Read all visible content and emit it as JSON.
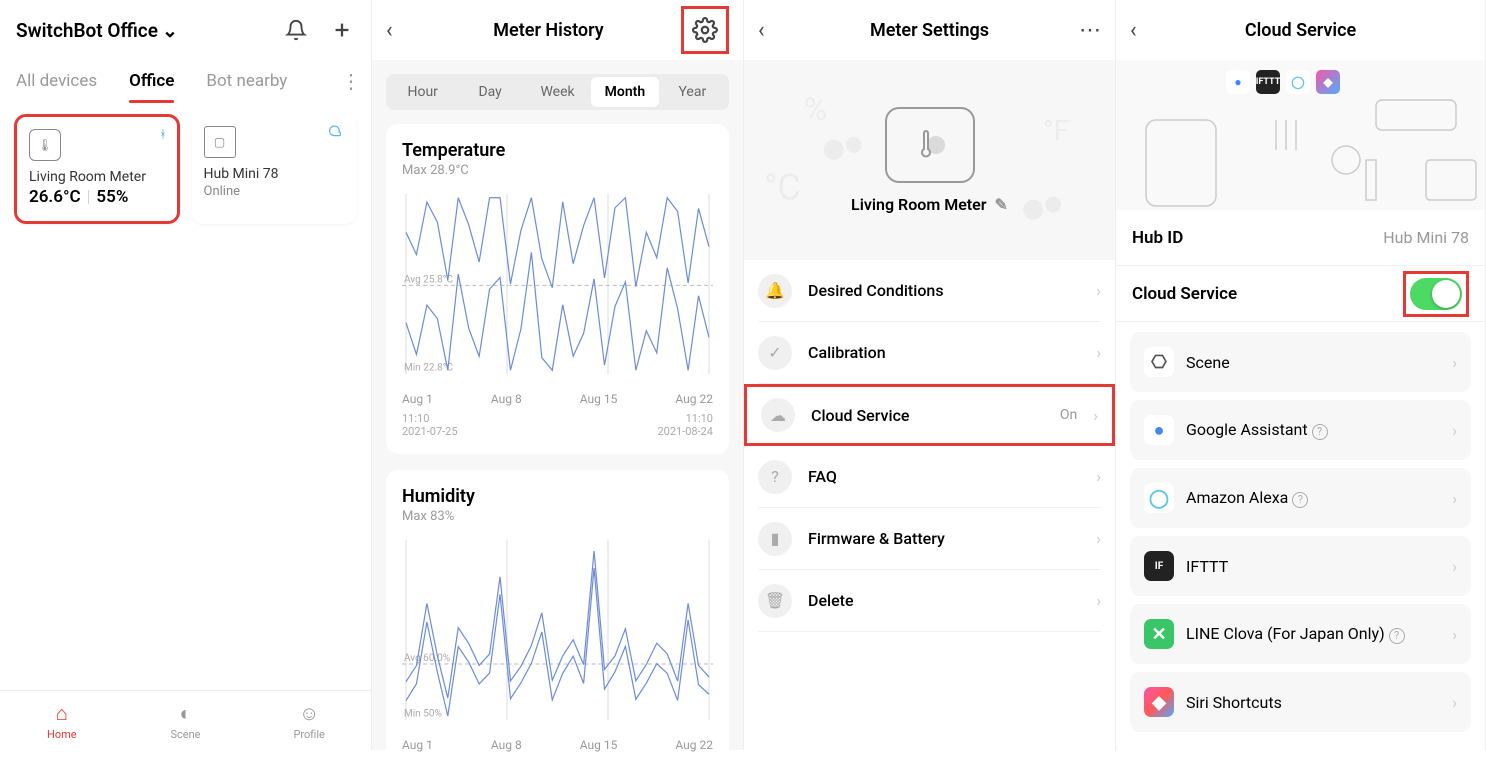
{
  "panel1": {
    "location": "SwitchBot Office",
    "filters": [
      "All devices",
      "Office",
      "Bot nearby"
    ],
    "activeFilter": "Office",
    "devices": [
      {
        "name": "Living Room Meter",
        "temp": "26.6°C",
        "hum": "55%",
        "highlighted": true
      },
      {
        "name": "Hub Mini 78",
        "status": "Online"
      }
    ],
    "nav": [
      "Home",
      "Scene",
      "Profile"
    ],
    "activeNav": "Home"
  },
  "panel2": {
    "title": "Meter History",
    "timeTabs": [
      "Hour",
      "Day",
      "Week",
      "Month",
      "Year"
    ],
    "activeTimeTab": "Month",
    "tempChart": {
      "title": "Temperature",
      "maxLabel": "Max 28.9°C",
      "avgLabel": "Avg 25.8°C",
      "minLabel": "Min 22.8°C",
      "xLabels": [
        "Aug 1",
        "Aug 8",
        "Aug 15",
        "Aug 22"
      ],
      "dateStart": "11:10\n2021-07-25",
      "dateEnd": "11:10\n2021-08-24",
      "lineColor": "#6c8cd5",
      "gridColor": "#dddddd",
      "ymin": 22.8,
      "ymax": 28.9,
      "yavg": 25.8,
      "series": [
        26,
        25,
        27,
        26.5,
        24,
        28,
        26,
        25,
        27.5,
        28,
        24,
        26,
        28.5,
        25,
        24,
        27,
        25,
        26,
        28,
        24.5,
        27,
        27.5,
        24,
        26,
        25,
        28,
        26.5,
        24,
        27,
        25.5
      ]
    },
    "humChart": {
      "title": "Humidity",
      "maxLabel": "Max 83%",
      "avgLabel": "Avg 60.0%",
      "minLabel": "Min 50%",
      "xLabels": [
        "Aug 1",
        "Aug 8",
        "Aug 15",
        "Aug 22"
      ],
      "lineColor": "#6c8cd5",
      "gridColor": "#dddddd",
      "ymin": 50,
      "ymax": 83,
      "yavg": 60,
      "series": [
        55,
        58,
        70,
        60,
        52,
        65,
        62,
        58,
        60,
        75,
        55,
        58,
        62,
        68,
        55,
        60,
        63,
        58,
        80,
        57,
        60,
        65,
        55,
        58,
        62,
        60,
        55,
        70,
        58,
        56
      ]
    }
  },
  "panel3": {
    "title": "Meter Settings",
    "deviceName": "Living Room Meter",
    "items": [
      {
        "icon": "bell",
        "label": "Desired Conditions"
      },
      {
        "icon": "check",
        "label": "Calibration"
      },
      {
        "icon": "cloud",
        "label": "Cloud Service",
        "value": "On",
        "highlighted": true
      },
      {
        "icon": "question",
        "label": "FAQ"
      },
      {
        "icon": "battery",
        "label": "Firmware & Battery"
      },
      {
        "icon": "trash",
        "label": "Delete"
      }
    ]
  },
  "panel4": {
    "title": "Cloud Service",
    "hubLabel": "Hub ID",
    "hubValue": "Hub Mini 78",
    "cloudLabel": "Cloud Service",
    "cloudOn": true,
    "integrations": [
      {
        "label": "Scene",
        "iconBg": "#ffffff",
        "iconColor": "#555",
        "glyph": "⎔"
      },
      {
        "label": "Google Assistant",
        "iconBg": "#ffffff",
        "iconColor": "#4285f4",
        "glyph": "●",
        "help": true
      },
      {
        "label": "Amazon Alexa",
        "iconBg": "#ffffff",
        "iconColor": "#5ec6e8",
        "glyph": "◯",
        "help": true
      },
      {
        "label": "IFTTT",
        "iconBg": "#222222",
        "iconColor": "#fff",
        "glyph": "IF"
      },
      {
        "label": "LINE Clova (For Japan Only)",
        "iconBg": "#3ac569",
        "iconColor": "#fff",
        "glyph": "✕",
        "help": true
      },
      {
        "label": "Siri Shortcuts",
        "iconBg": "linear-gradient(135deg,#f857a6,#ff5858,#4facfe)",
        "iconColor": "#fff",
        "glyph": "◆"
      }
    ]
  }
}
